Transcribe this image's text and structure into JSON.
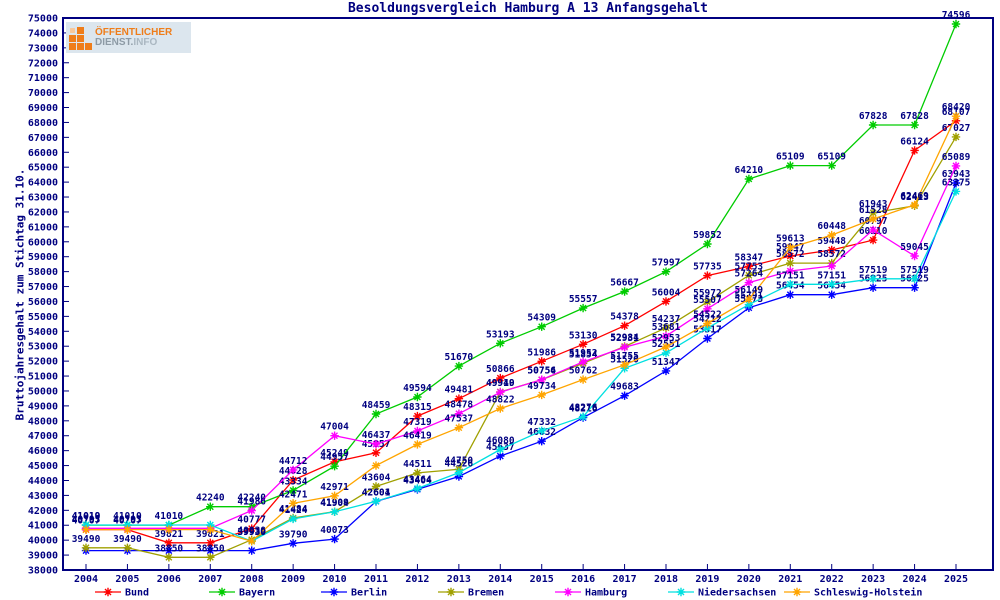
{
  "header": {
    "title": "Besoldungsvergleich Hamburg A 13 Anfangsgehalt"
  },
  "logo": {
    "line1": "ÖFFENTLICHER",
    "line2a": "DIENST.",
    "line2b": "INFO"
  },
  "chart_data": {
    "type": "line",
    "title": "Besoldungsvergleich Hamburg A 13 Anfangsgehalt",
    "xlabel": "",
    "ylabel": "Bruttojahresgehalt zum Stichtag 31.10.",
    "x": [
      2004,
      2005,
      2006,
      2007,
      2008,
      2009,
      2010,
      2011,
      2012,
      2013,
      2014,
      2015,
      2016,
      2017,
      2018,
      2019,
      2020,
      2021,
      2022,
      2023,
      2024,
      2025
    ],
    "ylim": [
      38000,
      75000
    ],
    "ytick_step": 1000,
    "grid": false,
    "legend_position": "bottom",
    "marker": "star",
    "label_color": "#000080",
    "axis_color": "#000080",
    "series": [
      {
        "name": "Bund",
        "color": "#ff0000",
        "values": [
          40707,
          40707,
          39821,
          39821,
          40777,
          44028,
          45249,
          45857,
          48315,
          49481,
          50866,
          51986,
          53130,
          54378,
          56004,
          57735,
          58347,
          59047,
          59448,
          60110,
          66124,
          68107
        ],
        "show_labels": [
          1,
          1,
          1,
          1,
          1,
          1,
          1,
          1,
          1,
          1,
          1,
          1,
          1,
          1,
          1,
          1,
          1,
          1,
          1,
          1,
          1,
          1
        ]
      },
      {
        "name": "Bayern",
        "color": "#00cc00",
        "values": [
          41010,
          41010,
          41010,
          42240,
          42240,
          43334,
          44957,
          48459,
          49594,
          51670,
          53193,
          54309,
          55557,
          56667,
          57997,
          59852,
          64210,
          65109,
          65109,
          67828,
          67828,
          74596
        ],
        "show_labels": [
          1,
          1,
          1,
          1,
          1,
          1,
          1,
          1,
          1,
          1,
          1,
          1,
          1,
          1,
          1,
          1,
          1,
          1,
          1,
          1,
          1,
          1
        ]
      },
      {
        "name": "Berlin",
        "color": "#0000ff",
        "values": [
          39300,
          39300,
          39300,
          39300,
          39300,
          39790,
          40073,
          42601,
          43404,
          44270,
          45637,
          46632,
          48216,
          49683,
          51347,
          53517,
          55573,
          56454,
          56454,
          56925,
          56925,
          63943
        ],
        "show_labels": [
          0,
          0,
          0,
          0,
          0,
          1,
          1,
          1,
          1,
          0,
          1,
          1,
          1,
          1,
          1,
          1,
          1,
          1,
          1,
          1,
          1,
          1
        ]
      },
      {
        "name": "Bremen",
        "color": "#a0a000",
        "values": [
          39490,
          39490,
          38850,
          38850,
          40030,
          41484,
          41909,
          43604,
          44511,
          44750,
          49940,
          50754,
          51854,
          52984,
          54237,
          55972,
          57753,
          58572,
          58572,
          61943,
          62413,
          67027
        ],
        "show_labels": [
          1,
          1,
          1,
          1,
          1,
          1,
          1,
          1,
          1,
          1,
          1,
          1,
          1,
          1,
          1,
          1,
          1,
          1,
          1,
          1,
          1,
          1
        ]
      },
      {
        "name": "Hamburg",
        "color": "#ff00ff",
        "values": [
          40793,
          40793,
          40793,
          40793,
          41986,
          44712,
          47004,
          46437,
          47319,
          48478,
          49919,
          50756,
          51952,
          52931,
          53681,
          55507,
          57264,
          58040,
          58380,
          60797,
          59045,
          65089
        ],
        "show_labels": [
          1,
          1,
          0,
          0,
          1,
          1,
          1,
          1,
          1,
          1,
          1,
          1,
          1,
          1,
          1,
          1,
          1,
          0,
          0,
          1,
          1,
          1
        ]
      },
      {
        "name": "Niedersachsen",
        "color": "#00e0e0",
        "values": [
          41019,
          41019,
          41019,
          41019,
          39930,
          41424,
          41904,
          42604,
          43464,
          44526,
          46080,
          47332,
          48276,
          51520,
          52551,
          54212,
          55791,
          57151,
          57151,
          57519,
          57519,
          63375
        ],
        "show_labels": [
          1,
          0,
          0,
          0,
          1,
          1,
          1,
          1,
          1,
          1,
          1,
          1,
          1,
          1,
          1,
          1,
          1,
          1,
          1,
          1,
          1,
          1
        ]
      },
      {
        "name": "Schleswig-Holstein",
        "color": "#ffa500",
        "values": [
          40707,
          40707,
          40707,
          40707,
          39930,
          42471,
          42971,
          45000,
          46419,
          47537,
          48822,
          49734,
          50762,
          51755,
          52953,
          54522,
          56149,
          59613,
          60448,
          61528,
          62469,
          68420
        ],
        "show_labels": [
          0,
          0,
          0,
          0,
          1,
          1,
          1,
          0,
          1,
          1,
          1,
          1,
          1,
          1,
          1,
          1,
          1,
          1,
          1,
          1,
          1,
          1
        ]
      }
    ]
  }
}
